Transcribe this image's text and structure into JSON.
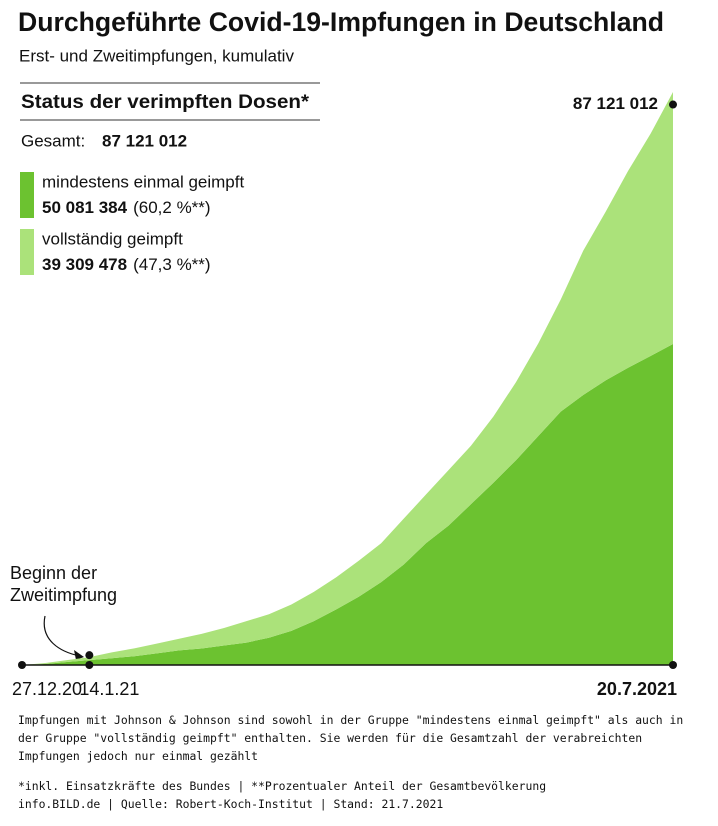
{
  "chart_data": {
    "type": "stacked-area",
    "title": "Durchgeführte Covid-19-Impfungen in Deutschland",
    "subtitle": "Erst- und Zweitimpfungen, kumulativ",
    "legend_title": "Status der verimpften Dosen*",
    "total_label": "Gesamt:",
    "total": {
      "value": 87121012,
      "label": "87 121 012"
    },
    "categories": [
      "27.12.20",
      null,
      null,
      "14.1.21",
      null,
      null,
      null,
      null,
      null,
      null,
      null,
      null,
      null,
      null,
      null,
      null,
      null,
      null,
      null,
      null,
      null,
      null,
      null,
      null,
      null,
      null,
      null,
      null,
      null,
      "20.7.2021"
    ],
    "series": [
      {
        "name": "mindestens einmal geimpft",
        "color": "#6cc230",
        "end_label": "50 081 384",
        "share_label": "(60,2 %**)",
        "values": [
          0,
          150000,
          460000,
          760000,
          1060000,
          1370000,
          1820000,
          2280000,
          2580000,
          3040000,
          3500000,
          4260000,
          5320000,
          6840000,
          8670000,
          10640000,
          12920000,
          15660000,
          19010000,
          21740000,
          25090000,
          28430000,
          31930000,
          35730000,
          39530000,
          42120000,
          44400000,
          46370000,
          48200000,
          50081384
        ]
      },
      {
        "name": "vollständig geimpft",
        "color": "#abe27a",
        "end_label": "39 309 478",
        "share_label": "(47,3 %**)",
        "values": [
          0,
          150000,
          300000,
          460000,
          910000,
          1220000,
          1520000,
          1820000,
          2280000,
          2740000,
          3350000,
          3650000,
          4110000,
          4560000,
          5020000,
          5630000,
          6080000,
          7150000,
          7600000,
          8670000,
          9120000,
          10340000,
          12160000,
          14440000,
          17490000,
          22500000,
          26300000,
          30710000,
          34670000,
          39309478
        ]
      }
    ],
    "annotation": [
      "Beginn der",
      "Zweitimpfung"
    ],
    "annotation_index": 3,
    "notes": [
      "Impfungen mit Johnson & Johnson sind sowohl in der Gruppe \"mindestens einmal geimpft\" als auch in der Gruppe \"vollständig geimpft\" enthalten. Sie werden für die Gesamtzahl der verabreichten Impfungen jedoch nur einmal gezählt",
      "*inkl. Einsatzkräfte des Bundes | **Prozentualer Anteil der Gesamtbevölkerung",
      "info.BILD.de | Quelle: Robert-Koch-Institut | Stand: 21.7.2021"
    ]
  }
}
